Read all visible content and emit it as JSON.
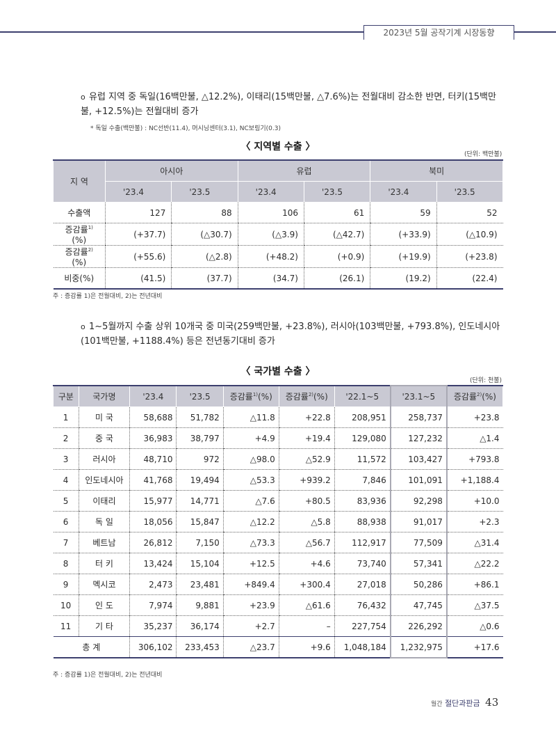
{
  "header": {
    "title": "2023년 5월 공작기계 시장동향"
  },
  "bullet1": {
    "mark": "ο",
    "text": "유럽 지역 중 독일(16백만불, △12.2%), 이태리(15백만불, △7.6%)는 전월대비 감소한 반면, 터키(15백만불, +12.5%)는 전월대비 증가"
  },
  "bullet1_note": "* 독일 수출(백만불) : NC선반(11.4), 머시닝센터(3.1), NC보링기(0.3)",
  "table1": {
    "title": "〈 지역별 수출 〉",
    "unit": "(단위: 백만불)",
    "region_header": "지 역",
    "groups": [
      "아시아",
      "유럽",
      "북미"
    ],
    "periods": [
      "'23.4",
      "'23.5",
      "'23.4",
      "'23.5",
      "'23.4",
      "'23.5"
    ],
    "rows": [
      {
        "label": "수출액",
        "sup": "",
        "suffix": "",
        "values": [
          "127",
          "88",
          "106",
          "61",
          "59",
          "52"
        ]
      },
      {
        "label": "증감률",
        "sup": "1)",
        "suffix": "(%)",
        "values": [
          "(+37.7)",
          "(△30.7)",
          "(△3.9)",
          "(△42.7)",
          "(+33.9)",
          "(△10.9)"
        ]
      },
      {
        "label": "증감률",
        "sup": "2)",
        "suffix": "(%)",
        "values": [
          "(+55.6)",
          "(△2.8)",
          "(+48.2)",
          "(+0.9)",
          "(+19.9)",
          "(+23.8)"
        ]
      },
      {
        "label": "비중(%)",
        "sup": "",
        "suffix": "",
        "values": [
          "(41.5)",
          "(37.7)",
          "(34.7)",
          "(26.1)",
          "(19.2)",
          "(22.4)"
        ]
      }
    ],
    "note": "주 : 증감률 1)은 전월대비, 2)는 전년대비"
  },
  "bullet2": {
    "mark": "ο",
    "text": "1~5월까지 수출 상위 10개국 중 미국(259백만불, +23.8%), 러시아(103백만불, +793.8%), 인도네시아(101백만불, +1188.4%) 등은 전년동기대비 증가"
  },
  "table2": {
    "title": "〈 국가별 수출 〉",
    "unit": "(단위: 천불)",
    "headers": [
      "구분",
      "국가명",
      "'23.4",
      "'23.5",
      "증감률",
      "증감률",
      "'22.1~5",
      "'23.1~5",
      "증감률"
    ],
    "header_sups": [
      "",
      "",
      "",
      "",
      "1)",
      "2)",
      "",
      "",
      "2)"
    ],
    "header_suffix": "(%)",
    "rows": [
      [
        "1",
        "미 국",
        "58,688",
        "51,782",
        "△11.8",
        "+22.8",
        "208,951",
        "258,737",
        "+23.8"
      ],
      [
        "2",
        "중 국",
        "36,983",
        "38,797",
        "+4.9",
        "+19.4",
        "129,080",
        "127,232",
        "△1.4"
      ],
      [
        "3",
        "러시아",
        "48,710",
        "972",
        "△98.0",
        "△52.9",
        "11,572",
        "103,427",
        "+793.8"
      ],
      [
        "4",
        "인도네시아",
        "41,768",
        "19,494",
        "△53.3",
        "+939.2",
        "7,846",
        "101,091",
        "+1,188.4"
      ],
      [
        "5",
        "이태리",
        "15,977",
        "14,771",
        "△7.6",
        "+80.5",
        "83,936",
        "92,298",
        "+10.0"
      ],
      [
        "6",
        "독 일",
        "18,056",
        "15,847",
        "△12.2",
        "△5.8",
        "88,938",
        "91,017",
        "+2.3"
      ],
      [
        "7",
        "베트남",
        "26,812",
        "7,150",
        "△73.3",
        "△56.7",
        "112,917",
        "77,509",
        "△31.4"
      ],
      [
        "8",
        "터 키",
        "13,424",
        "15,104",
        "+12.5",
        "+4.6",
        "73,740",
        "57,341",
        "△22.2"
      ],
      [
        "9",
        "멕시코",
        "2,473",
        "23,481",
        "+849.4",
        "+300.4",
        "27,018",
        "50,286",
        "+86.1"
      ],
      [
        "10",
        "인 도",
        "7,974",
        "9,881",
        "+23.9",
        "△61.6",
        "76,432",
        "47,745",
        "△37.5"
      ],
      [
        "11",
        "기 타",
        "35,237",
        "36,174",
        "+2.7",
        "–",
        "227,754",
        "226,292",
        "△0.6"
      ]
    ],
    "total": [
      "총 계",
      "306,102",
      "233,453",
      "△23.7",
      "+9.6",
      "1,048,184",
      "1,232,975",
      "+17.6"
    ],
    "note": "주 : 증감률 1)은 전월대비, 2)는 전년대비"
  },
  "footer": {
    "magazine_prefix": "월간",
    "magazine_name": "절단과판금",
    "page": "43"
  }
}
